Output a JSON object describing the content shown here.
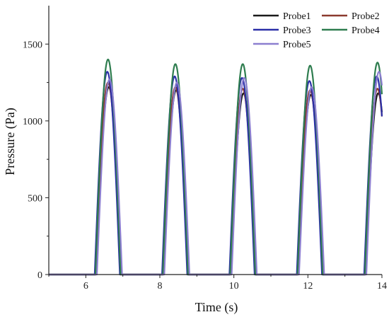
{
  "chart_data": {
    "type": "line",
    "title": "",
    "xlabel": "Time (s)",
    "ylabel": "Pressure (Pa)",
    "xlim": [
      5,
      14
    ],
    "ylim": [
      0,
      1750
    ],
    "xticks": [
      6,
      8,
      10,
      12,
      14
    ],
    "yticks": [
      0,
      500,
      1000,
      1500
    ],
    "grid": false,
    "legend_position": "top-right",
    "pulse_half_width_s": 0.34,
    "series": [
      {
        "name": "Probe1",
        "color": "#1a1a1a",
        "peaks": [
          {
            "t": 6.62,
            "p": 1220
          },
          {
            "t": 8.44,
            "p": 1200
          },
          {
            "t": 10.26,
            "p": 1180
          },
          {
            "t": 12.08,
            "p": 1170
          },
          {
            "t": 13.9,
            "p": 1180
          }
        ]
      },
      {
        "name": "Probe2",
        "color": "#8b3a2e",
        "peaks": [
          {
            "t": 6.6,
            "p": 1250
          },
          {
            "t": 8.42,
            "p": 1220
          },
          {
            "t": 10.24,
            "p": 1210
          },
          {
            "t": 12.06,
            "p": 1200
          },
          {
            "t": 13.88,
            "p": 1210
          }
        ]
      },
      {
        "name": "Probe3",
        "color": "#2b2fa8",
        "peaks": [
          {
            "t": 6.58,
            "p": 1320
          },
          {
            "t": 8.4,
            "p": 1290
          },
          {
            "t": 10.22,
            "p": 1280
          },
          {
            "t": 12.04,
            "p": 1260
          },
          {
            "t": 13.86,
            "p": 1290
          }
        ]
      },
      {
        "name": "Probe4",
        "color": "#2e7d4f",
        "peaks": [
          {
            "t": 6.6,
            "p": 1400
          },
          {
            "t": 8.42,
            "p": 1370
          },
          {
            "t": 10.24,
            "p": 1370
          },
          {
            "t": 12.06,
            "p": 1360
          },
          {
            "t": 13.88,
            "p": 1380
          }
        ]
      },
      {
        "name": "Probe5",
        "color": "#8c7fd0",
        "peaks": [
          {
            "t": 6.64,
            "p": 1270
          },
          {
            "t": 8.46,
            "p": 1250
          },
          {
            "t": 10.28,
            "p": 1280
          },
          {
            "t": 12.1,
            "p": 1220
          },
          {
            "t": 13.92,
            "p": 1320
          }
        ]
      }
    ]
  }
}
